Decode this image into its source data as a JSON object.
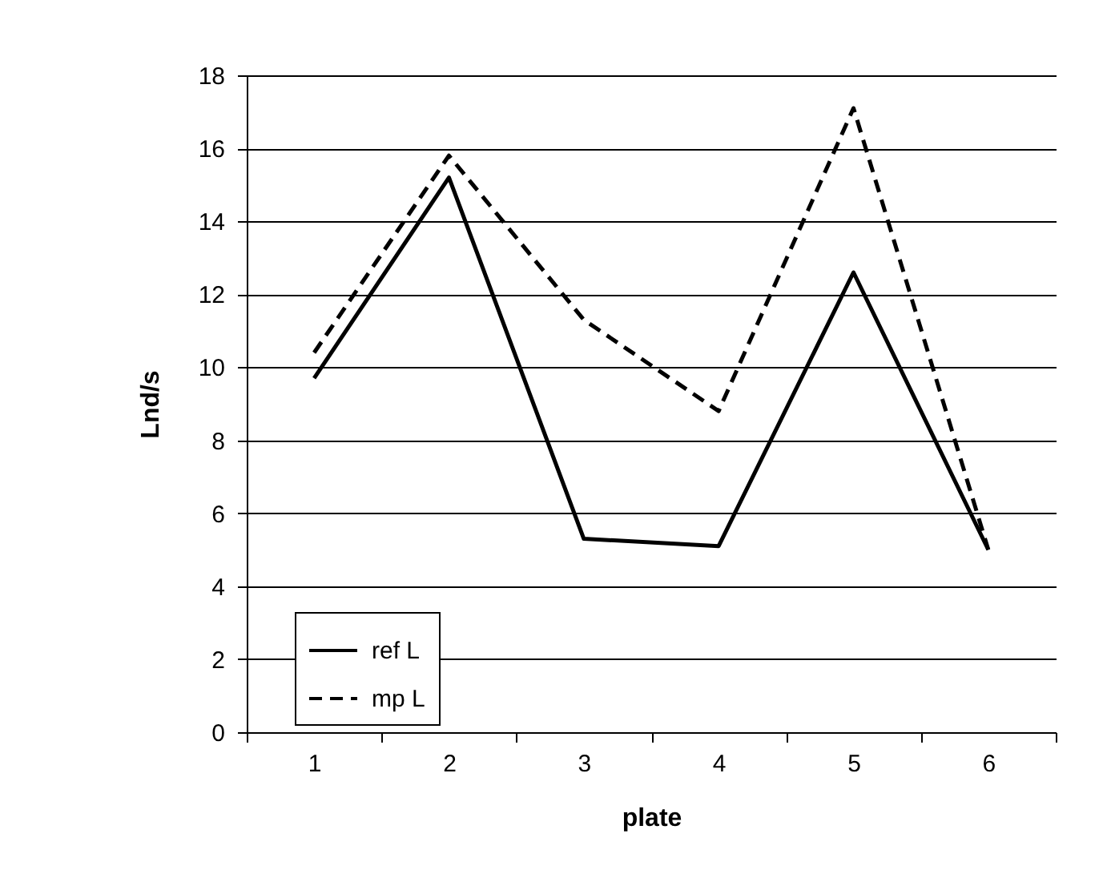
{
  "chart_data": {
    "type": "line",
    "xlabel": "plate",
    "ylabel": "Lnd/s",
    "categories": [
      "1",
      "2",
      "3",
      "4",
      "5",
      "6"
    ],
    "series": [
      {
        "name": "ref L",
        "color": "#000000",
        "line_style": "solid",
        "values": [
          9.7,
          15.2,
          5.3,
          5.1,
          12.6,
          5.0
        ]
      },
      {
        "name": "mp L",
        "color": "#000000",
        "line_style": "dashed",
        "values": [
          10.4,
          15.8,
          11.3,
          8.8,
          17.1,
          5.0
        ]
      }
    ],
    "ylim": [
      0,
      18
    ],
    "yticks": [
      0,
      2,
      4,
      6,
      8,
      10,
      12,
      14,
      16,
      18
    ],
    "grid": "y",
    "legend": "bottom",
    "marker": "none"
  }
}
